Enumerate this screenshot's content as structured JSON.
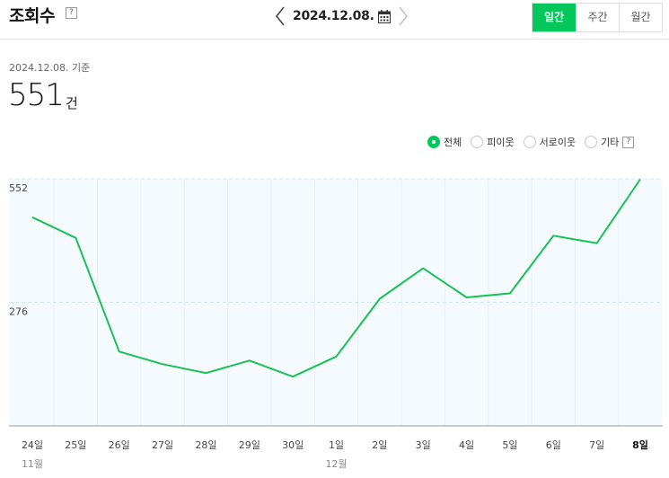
{
  "header": {
    "title": "조회수",
    "help": "?",
    "date": "2024.12.08.",
    "periods": [
      {
        "label": "일간",
        "active": true
      },
      {
        "label": "주간",
        "active": false
      },
      {
        "label": "월간",
        "active": false
      }
    ]
  },
  "summary": {
    "base_date": "2024.12.08. 기준",
    "count": "551",
    "unit": "건"
  },
  "legend": {
    "items": [
      {
        "label": "전체",
        "selected": true
      },
      {
        "label": "피이웃",
        "selected": false
      },
      {
        "label": "서로이웃",
        "selected": false
      },
      {
        "label": "기타",
        "selected": false
      }
    ],
    "help": "?"
  },
  "colors": {
    "accent": "#03c75a",
    "line": "#19c155",
    "plot_bg": "#f4fafe"
  },
  "chart_data": {
    "type": "line",
    "categories": [
      "24일",
      "25일",
      "26일",
      "27일",
      "28일",
      "29일",
      "30일",
      "1일",
      "2일",
      "3일",
      "4일",
      "5일",
      "6일",
      "7일",
      "8일"
    ],
    "month_labels": [
      {
        "index": 0,
        "label": "11월"
      },
      {
        "index": 7,
        "label": "12월"
      }
    ],
    "series": [
      {
        "values": [
          466,
          420,
          166,
          138,
          118,
          146,
          110,
          155,
          284,
          352,
          287,
          296,
          425,
          408,
          551
        ]
      }
    ],
    "yticks": [
      552,
      276
    ],
    "ylim": [
      0,
      552
    ],
    "grid": true,
    "highlight_last": true
  }
}
